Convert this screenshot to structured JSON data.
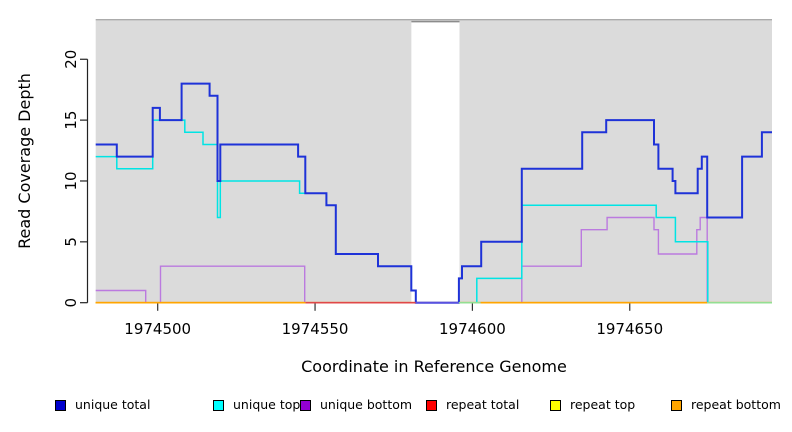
{
  "chart_data": {
    "type": "line",
    "subtype": "step-coverage",
    "title": "",
    "xlabel": "Coordinate in Reference Genome",
    "ylabel": "Read Coverage Depth",
    "xlim": [
      1974480.3,
      1974695.2
    ],
    "ylim": [
      0,
      23.25
    ],
    "grid": false,
    "legend_position": "bottom",
    "panel_background": "#DBDBDB",
    "panel_top_border_color": "#ABABAB",
    "gap_region": {
      "x_start": 1974580.6,
      "x_end": 1974595.9,
      "fill": "#FFFFFF",
      "top_border_color": "#8C8C8C"
    },
    "xticks": [
      {
        "value": 1974500,
        "label": "1974500"
      },
      {
        "value": 1974550,
        "label": "1974550"
      },
      {
        "value": 1974600,
        "label": "1974600"
      },
      {
        "value": 1974650,
        "label": "1974650"
      }
    ],
    "yticks": [
      {
        "value": 0,
        "label": "0"
      },
      {
        "value": 5,
        "label": "5"
      },
      {
        "value": 10,
        "label": "10"
      },
      {
        "value": 15,
        "label": "15"
      },
      {
        "value": 20,
        "label": "20"
      }
    ],
    "series": [
      {
        "name": "repeat total",
        "line_color": "#E04848",
        "width": 1.5,
        "steps": [
          [
            1974480.3,
            0
          ]
        ]
      },
      {
        "name": "repeat top",
        "line_color": "#FFFF00",
        "width": 1.5,
        "steps": [
          [
            1974480.3,
            0
          ]
        ]
      },
      {
        "name": "repeat bottom",
        "line_color": "#FFA500",
        "width": 1.6,
        "steps": [
          [
            1974480.3,
            0
          ]
        ]
      },
      {
        "name": "unique bottom",
        "line_color": "#BB7ADF",
        "width": 1.4,
        "steps": [
          [
            1974480.3,
            1
          ],
          [
            1974496.2,
            0
          ],
          [
            1974500.9,
            3
          ],
          [
            1974546.7,
            0
          ],
          [
            1974615.7,
            3
          ],
          [
            1974634.6,
            6
          ],
          [
            1974642.8,
            7
          ],
          [
            1974657.7,
            6
          ],
          [
            1974659.1,
            4
          ],
          [
            1974671.3,
            6
          ],
          [
            1974672.4,
            7
          ],
          [
            1974674.6,
            0
          ]
        ]
      },
      {
        "name": "unique top",
        "line_color": "#00E4E4",
        "width": 1.5,
        "steps": [
          [
            1974480.3,
            12
          ],
          [
            1974487,
            11
          ],
          [
            1974498.4,
            15
          ],
          [
            1974508.6,
            14
          ],
          [
            1974514.4,
            13
          ],
          [
            1974519,
            7
          ],
          [
            1974519.9,
            10
          ],
          [
            1974545.1,
            9
          ],
          [
            1974553.6,
            8
          ],
          [
            1974556.6,
            4
          ],
          [
            1974570,
            3
          ],
          [
            1974580.6,
            1
          ],
          [
            1974582,
            0
          ],
          [
            1974601.4,
            2
          ],
          [
            1974615.7,
            8
          ],
          [
            1974658.4,
            7
          ],
          [
            1974664.5,
            5
          ],
          [
            1974674.8,
            0
          ]
        ]
      },
      {
        "name": "unique total",
        "line_color": "#1E32D8",
        "width": 2,
        "steps": [
          [
            1974480.3,
            13
          ],
          [
            1974487,
            12
          ],
          [
            1974498.4,
            16
          ],
          [
            1974500.7,
            15
          ],
          [
            1974507.6,
            18
          ],
          [
            1974516.5,
            17
          ],
          [
            1974519,
            10
          ],
          [
            1974519.9,
            13
          ],
          [
            1974544.6,
            12
          ],
          [
            1974546.9,
            9
          ],
          [
            1974553.6,
            8
          ],
          [
            1974556.6,
            4
          ],
          [
            1974570,
            3
          ],
          [
            1974580.6,
            1
          ],
          [
            1974582,
            0
          ],
          [
            1974595.7,
            2
          ],
          [
            1974596.7,
            3
          ],
          [
            1974602.8,
            5
          ],
          [
            1974615.7,
            11
          ],
          [
            1974634.9,
            14
          ],
          [
            1974642.5,
            15
          ],
          [
            1974657.7,
            13
          ],
          [
            1974659.1,
            11
          ],
          [
            1974663.6,
            10
          ],
          [
            1974664.5,
            9
          ],
          [
            1974671.6,
            11
          ],
          [
            1974672.9,
            12
          ],
          [
            1974674.6,
            7
          ],
          [
            1974685.7,
            12
          ],
          [
            1974692,
            14
          ]
        ]
      }
    ],
    "baseline_segments": [
      {
        "x1": 1974480.3,
        "x2": 1974547.0,
        "color": "#FFA500",
        "meaning": "repeat bottom at 0"
      },
      {
        "x1": 1974547.0,
        "x2": 1974582.0,
        "color": "#E04848",
        "meaning": "repeat total at 0"
      },
      {
        "x1": 1974582.0,
        "x2": 1974595.7,
        "color": "#5B50DF",
        "meaning": "unique total 0 in gap"
      },
      {
        "x1": 1974595.7,
        "x2": 1974602.6,
        "color": "#93DF93",
        "meaning": "unique top + repeat top at 0"
      },
      {
        "x1": 1974602.6,
        "x2": 1974674.6,
        "color": "#FFA500",
        "meaning": "repeat bottom at 0"
      },
      {
        "x1": 1974674.6,
        "x2": 1974695.2,
        "color": "#93DF93",
        "meaning": "unique top + repeat top at 0"
      }
    ]
  },
  "legend": {
    "items": [
      {
        "label": "unique total",
        "color": "#0000CD"
      },
      {
        "label": "unique top",
        "color": "#00FFFF"
      },
      {
        "label": "unique bottom",
        "color": "#9400D3"
      },
      {
        "label": "repeat total",
        "color": "#FF0000"
      },
      {
        "label": "repeat top",
        "color": "#FFFF00"
      },
      {
        "label": "repeat bottom",
        "color": "#FFA500"
      }
    ]
  }
}
